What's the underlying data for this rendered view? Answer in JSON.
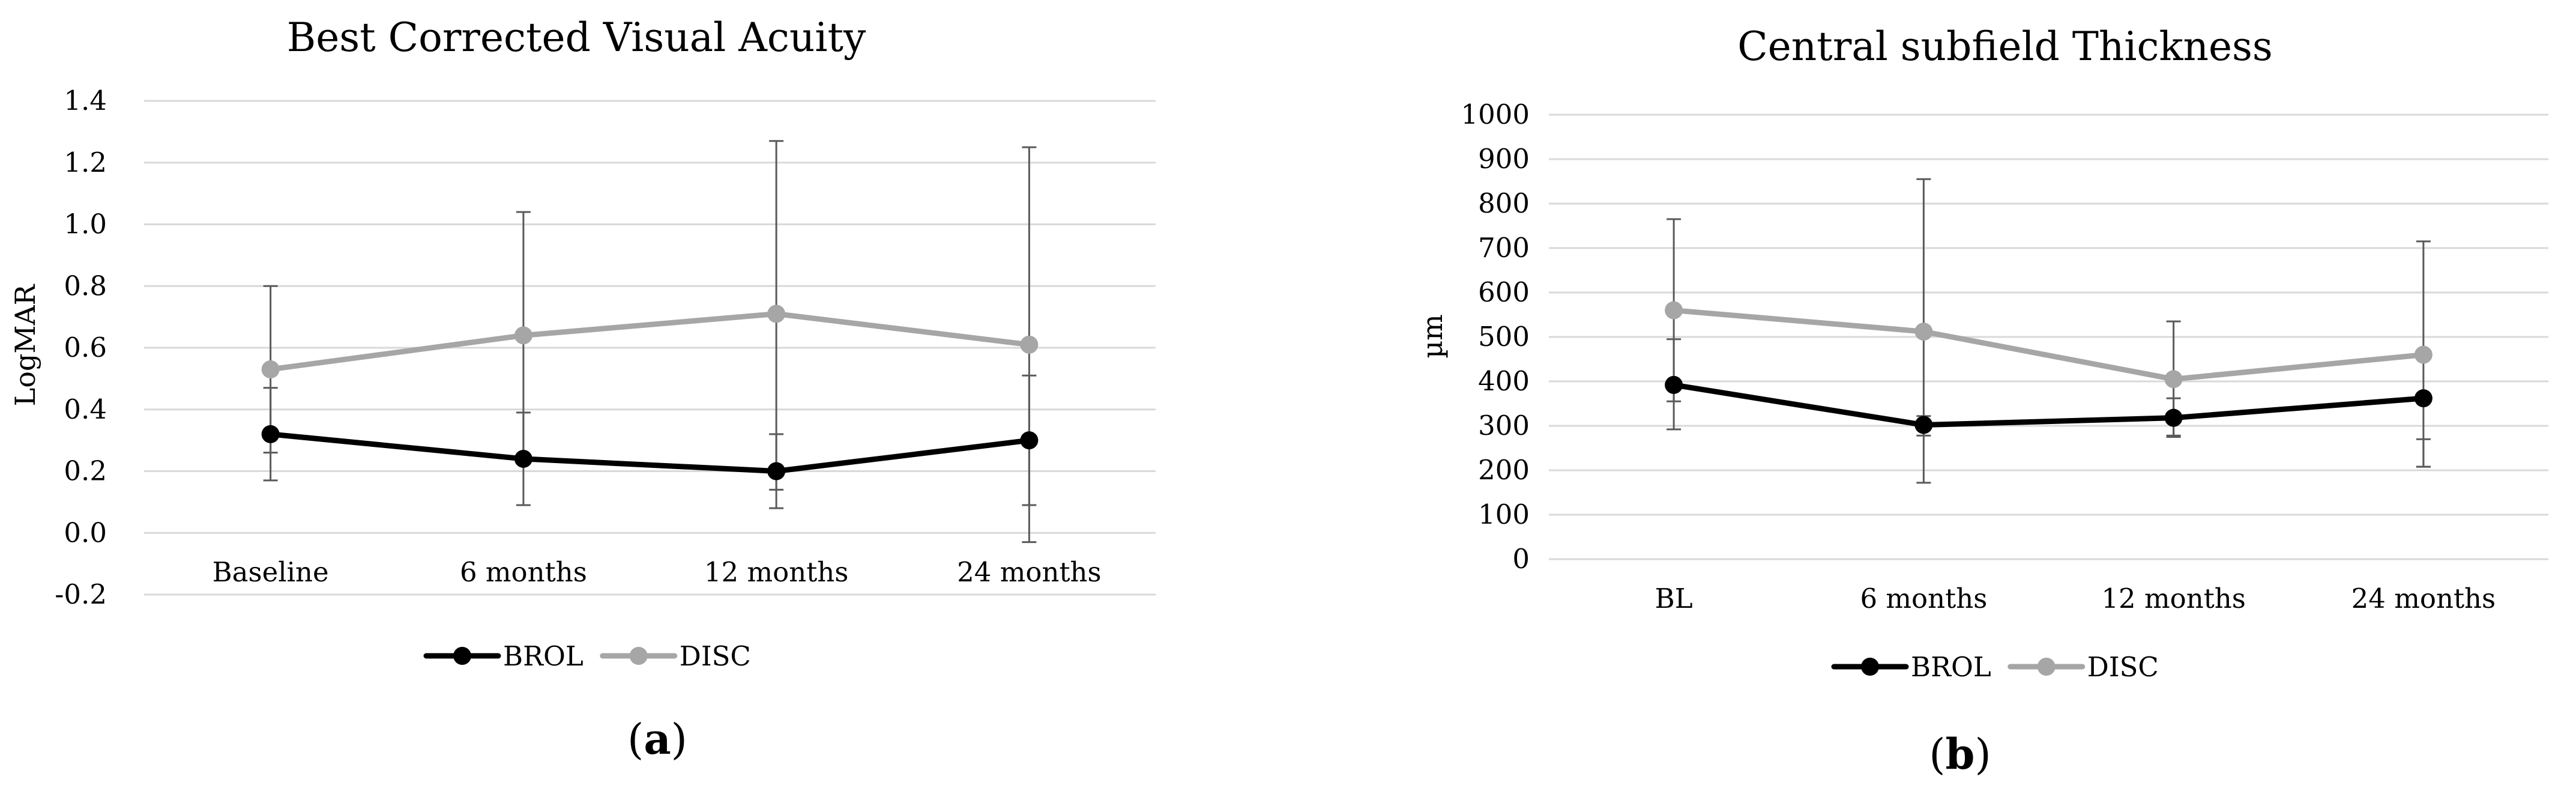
{
  "figure": {
    "panels": [
      "(a)",
      "(b)"
    ]
  },
  "chart_data": [
    {
      "type": "line",
      "title": "Best Corrected Visual Acuity",
      "panel_label": "a",
      "xlabel": "",
      "ylabel": "LogMAR",
      "categories": [
        "Baseline",
        "6 months",
        "12 months",
        "24 months"
      ],
      "ylim": [
        -0.2,
        1.4
      ],
      "yticks": [
        "-0.2",
        "0.0",
        "0.2",
        "0.4",
        "0.6",
        "0.8",
        "1.0",
        "1.2",
        "1.4"
      ],
      "grid": true,
      "legend_position": "bottom",
      "series": [
        {
          "name": "BROL",
          "color": "#000000",
          "values": [
            0.32,
            0.24,
            0.2,
            0.3
          ],
          "error_low": [
            0.17,
            0.09,
            0.08,
            -0.03
          ],
          "error_high": [
            0.47,
            0.39,
            0.32,
            0.51
          ]
        },
        {
          "name": "DISC",
          "color": "#a6a6a6",
          "values": [
            0.53,
            0.64,
            0.71,
            0.61
          ],
          "error_low": [
            0.26,
            0.24,
            0.14,
            0.09
          ],
          "error_high": [
            0.8,
            1.04,
            1.27,
            1.25
          ]
        }
      ]
    },
    {
      "type": "line",
      "title": "Central subfield Thickness",
      "panel_label": "b",
      "xlabel": "",
      "ylabel": "µm",
      "categories": [
        "BL",
        "6 months",
        "12 months",
        "24 months"
      ],
      "ylim": [
        0,
        1000
      ],
      "yticks": [
        "0",
        "100",
        "200",
        "300",
        "400",
        "500",
        "600",
        "700",
        "800",
        "900",
        "1000"
      ],
      "grid": true,
      "legend_position": "bottom",
      "series": [
        {
          "name": "BROL",
          "color": "#000000",
          "values": [
            392,
            302,
            318,
            362
          ],
          "error_low": [
            292,
            172,
            275,
            208
          ],
          "error_high": [
            495,
            322,
            362,
            270
          ]
        },
        {
          "name": "DISC",
          "color": "#a6a6a6",
          "values": [
            560,
            512,
            405,
            460
          ],
          "error_low": [
            355,
            278,
            278,
            208
          ],
          "error_high": [
            765,
            855,
            535,
            715
          ]
        }
      ]
    }
  ]
}
